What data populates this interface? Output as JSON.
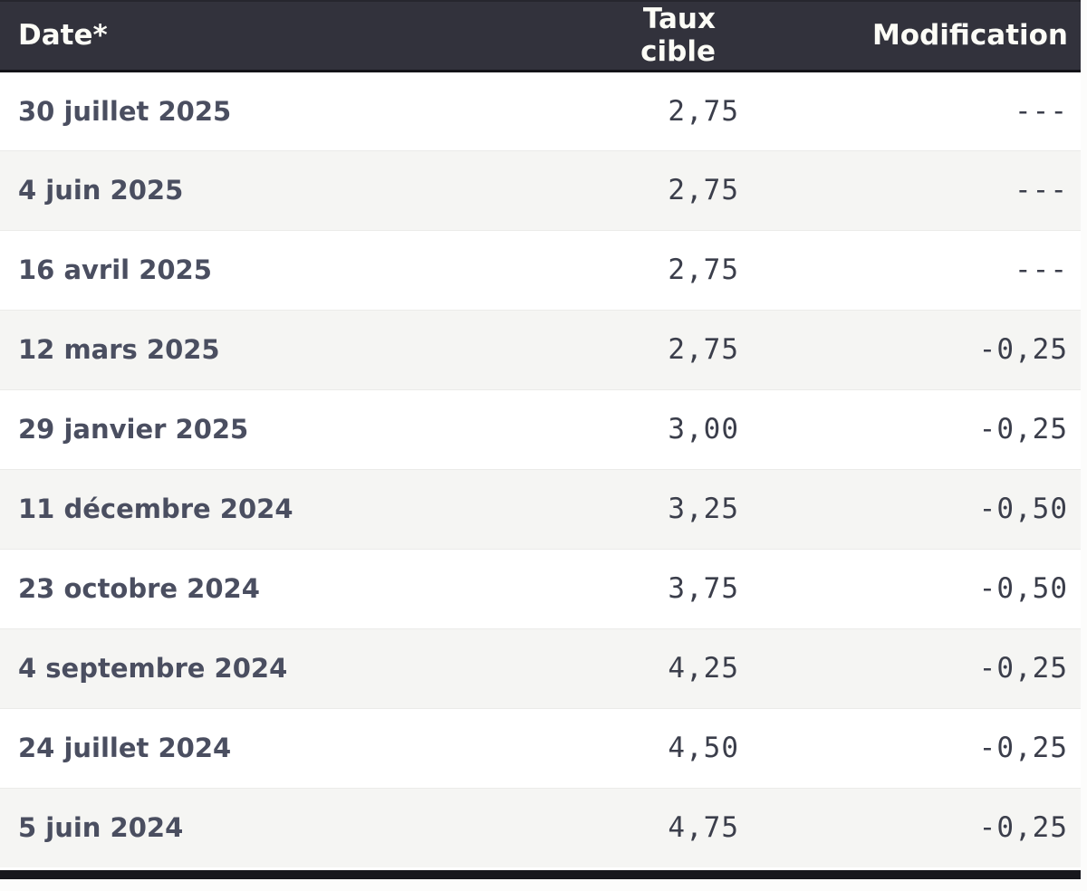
{
  "table": {
    "columns": {
      "date": {
        "label": "Date*"
      },
      "rate": {
        "label": "Taux cible"
      },
      "change": {
        "label": "Modification"
      }
    },
    "rows": [
      {
        "date": "30 juillet 2025",
        "rate": "2,75",
        "change": "---"
      },
      {
        "date": "4 juin 2025",
        "rate": "2,75",
        "change": "---"
      },
      {
        "date": "16 avril 2025",
        "rate": "2,75",
        "change": "---"
      },
      {
        "date": "12 mars 2025",
        "rate": "2,75",
        "change": "-0,25"
      },
      {
        "date": "29 janvier 2025",
        "rate": "3,00",
        "change": "-0,25"
      },
      {
        "date": "11 décembre 2024",
        "rate": "3,25",
        "change": "-0,50"
      },
      {
        "date": "23 octobre 2024",
        "rate": "3,75",
        "change": "-0,50"
      },
      {
        "date": "4 septembre 2024",
        "rate": "4,25",
        "change": "-0,25"
      },
      {
        "date": "24 juillet 2024",
        "rate": "4,50",
        "change": "-0,25"
      },
      {
        "date": "5 juin 2024",
        "rate": "4,75",
        "change": "-0,25"
      }
    ]
  },
  "colors": {
    "header_bg": "#32323c",
    "header_text": "#fcfcf6",
    "header_border_bottom": "#131318",
    "date_text": "#4a4e60",
    "value_text": "#3b3e4b",
    "row_bg": "#ffffff",
    "row_alt_bg": "#f5f5f3",
    "row_divider": "#ebebe9",
    "bottom_bar": "#17171d"
  }
}
